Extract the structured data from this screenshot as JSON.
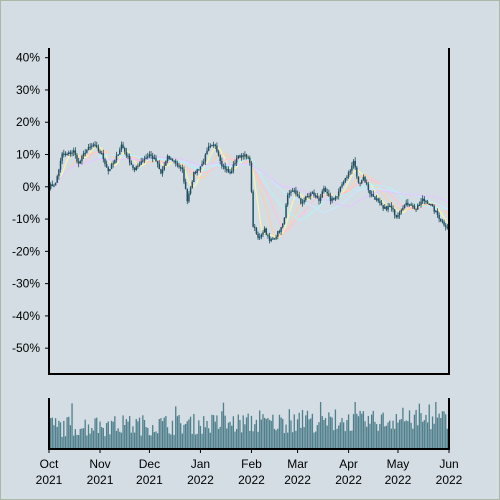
{
  "colors": {
    "background": "#d3dde3",
    "frame": "#aab9a5",
    "candle": "#1f4e5f",
    "volume": "#4f7f8c",
    "ma": [
      "#fff3a8",
      "#ffcfa8",
      "#ffc4d6",
      "#b8f0f5",
      "#c7e9ff",
      "#e5c8ff"
    ]
  },
  "chart_data": [
    {
      "type": "candlestick",
      "title": "",
      "ylabel": "",
      "ylim": [
        -0.58,
        0.43
      ],
      "yticks": [
        -0.5,
        -0.4,
        -0.3,
        -0.2,
        -0.1,
        0,
        0.1,
        0.2,
        0.3,
        0.4
      ],
      "ytick_labels": [
        "-50%",
        "-40%",
        "-30%",
        "-20%",
        "-10%",
        "0%",
        "10%",
        "20%",
        "30%",
        "40%"
      ],
      "xlim": [
        "2021-10-01",
        "2022-06-01"
      ],
      "xticks": [
        "2021-10-01",
        "2021-11-01",
        "2021-12-01",
        "2022-01-01",
        "2022-02-01",
        "2022-03-01",
        "2022-04-01",
        "2022-05-01",
        "2022-06-01"
      ],
      "xtick_labels": [
        "Oct\n2021",
        "Nov\n2021",
        "Dec\n2021",
        "Jan\n2022",
        "Feb\n2022",
        "Mar\n2022",
        "Apr\n2022",
        "May\n2022",
        "Jun\n2022"
      ],
      "grid": false,
      "close_keypoints": [
        [
          "2021-10-01",
          0.0
        ],
        [
          "2021-10-05",
          0.01
        ],
        [
          "2021-10-09",
          0.1
        ],
        [
          "2021-10-12",
          0.1
        ],
        [
          "2021-10-16",
          0.11
        ],
        [
          "2021-10-19",
          0.07
        ],
        [
          "2021-10-23",
          0.11
        ],
        [
          "2021-10-28",
          0.13
        ],
        [
          "2021-11-02",
          0.1
        ],
        [
          "2021-11-06",
          0.05
        ],
        [
          "2021-11-10",
          0.08
        ],
        [
          "2021-11-14",
          0.13
        ],
        [
          "2021-11-18",
          0.09
        ],
        [
          "2021-11-22",
          0.05
        ],
        [
          "2021-11-26",
          0.08
        ],
        [
          "2021-12-01",
          0.1
        ],
        [
          "2021-12-05",
          0.08
        ],
        [
          "2021-12-08",
          0.04
        ],
        [
          "2021-12-12",
          0.09
        ],
        [
          "2021-12-16",
          0.08
        ],
        [
          "2021-12-21",
          0.05
        ],
        [
          "2021-12-24",
          -0.04
        ],
        [
          "2021-12-28",
          0.04
        ],
        [
          "2022-01-02",
          0.07
        ],
        [
          "2022-01-06",
          0.12
        ],
        [
          "2022-01-10",
          0.13
        ],
        [
          "2022-01-14",
          0.07
        ],
        [
          "2022-01-19",
          0.04
        ],
        [
          "2022-01-23",
          0.09
        ],
        [
          "2022-01-27",
          0.1
        ],
        [
          "2022-01-31",
          0.08
        ],
        [
          "2022-02-02",
          -0.12
        ],
        [
          "2022-02-05",
          -0.16
        ],
        [
          "2022-02-09",
          -0.13
        ],
        [
          "2022-02-12",
          -0.17
        ],
        [
          "2022-02-16",
          -0.15
        ],
        [
          "2022-02-20",
          -0.12
        ],
        [
          "2022-02-23",
          -0.03
        ],
        [
          "2022-02-27",
          -0.01
        ],
        [
          "2022-03-03",
          -0.05
        ],
        [
          "2022-03-07",
          -0.03
        ],
        [
          "2022-03-10",
          -0.02
        ],
        [
          "2022-03-14",
          -0.04
        ],
        [
          "2022-03-17",
          -0.01
        ],
        [
          "2022-03-21",
          -0.04
        ],
        [
          "2022-03-25",
          -0.03
        ],
        [
          "2022-03-29",
          0.02
        ],
        [
          "2022-04-02",
          0.05
        ],
        [
          "2022-04-04",
          0.08
        ],
        [
          "2022-04-07",
          0.01
        ],
        [
          "2022-04-10",
          0.03
        ],
        [
          "2022-04-14",
          -0.02
        ],
        [
          "2022-04-18",
          -0.04
        ],
        [
          "2022-04-22",
          -0.07
        ],
        [
          "2022-04-26",
          -0.06
        ],
        [
          "2022-04-30",
          -0.09
        ],
        [
          "2022-05-04",
          -0.06
        ],
        [
          "2022-05-08",
          -0.05
        ],
        [
          "2022-05-12",
          -0.07
        ],
        [
          "2022-05-16",
          -0.04
        ],
        [
          "2022-05-20",
          -0.05
        ],
        [
          "2022-05-24",
          -0.08
        ],
        [
          "2022-05-28",
          -0.11
        ],
        [
          "2022-06-01",
          -0.13
        ]
      ],
      "moving_averages": {
        "note_windows_days": [
          7,
          14,
          21,
          30,
          45,
          60
        ],
        "colors": [
          "#fff3a8",
          "#ffcfa8",
          "#ffc4d6",
          "#b8f0f5",
          "#c7e9ff",
          "#e5c8ff"
        ]
      }
    },
    {
      "type": "bar",
      "title": "",
      "description_series": "daily volume (relative, unlabeled)",
      "xlim": [
        "2021-10-01",
        "2022-06-01"
      ]
    }
  ]
}
